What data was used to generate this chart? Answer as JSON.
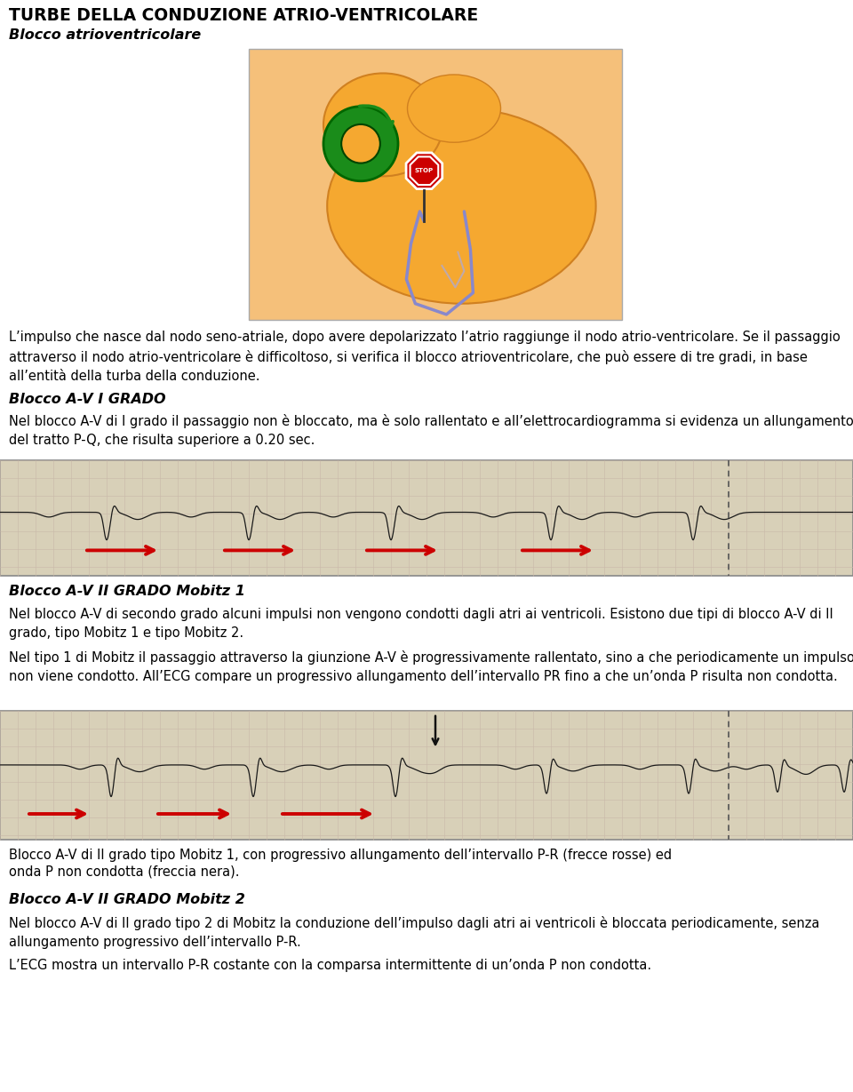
{
  "title": "TURBE DELLA CONDUZIONE ATRIO-VENTRICOLARE",
  "subtitle": "Blocco atrioventricolare",
  "bg_color": "#ffffff",
  "text_color": "#000000",
  "title_fontsize": 13.5,
  "subtitle_fontsize": 11.5,
  "body_fontsize": 10.5,
  "heading_fontsize": 11.5,
  "para1": "L’impulso che nasce dal nodo seno-atriale, dopo avere depolarizzato l’atrio raggiunge il nodo atrio-ventricolare. Se il passaggio\nattraverso il nodo atrio-ventricolare è difficoltoso, si verifica il blocco atrioventricolare, che può essere di tre gradi, in base\nall’entità della turba della conduzione.",
  "heading2": "Blocco A-V I GRADO",
  "para2": "Nel blocco A-V di I grado il passaggio non è bloccato, ma è solo rallentato e all’elettrocardiogramma si evidenza un allungamento\ndel tratto P-Q, che risulta superiore a 0.20 sec.",
  "heading3": "Blocco A-V II GRADO Mobitz 1",
  "para3a": "Nel blocco A-V di secondo grado alcuni impulsi non vengono condotti dagli atri ai ventricoli. Esistono due tipi di blocco A-V di II\ngrado, tipo Mobitz 1 e tipo Mobitz 2.",
  "para3b": "Nel tipo 1 di Mobitz il passaggio attraverso la giunzione A-V è progressivamente rallentato, sino a che periodicamente un impulso\nnon viene condotto. All’ECG compare un progressivo allungamento dell’intervallo PR fino a che un’onda P risulta non condotta.",
  "caption1": "Blocco A-V di II grado tipo Mobitz 1, con progressivo allungamento dell’intervallo P-R (frecce rosse) ed onda P non condotta (freccia nera).",
  "caption2": "onda P non condotta (freccia nera).",
  "heading4": "Blocco A-V II GRADO Mobitz 2",
  "para4a": "Nel blocco A-V di II grado tipo 2 di Mobitz la conduzione dell’impulso dagli atri ai ventricoli è bloccata periodicamente, senza\nallungamento progressivo dell’intervallo P-R.",
  "para4b": "L’ECG mostra un intervallo P-R costante con la comparsa intermittente di un’onda P non condotta.",
  "arrow_color": "#cc0000",
  "dashed_line_color": "#666666",
  "ecg_bg": "#ddd8cc",
  "heart_bg": "#f5c580",
  "heart_edge": "#ccaa60"
}
